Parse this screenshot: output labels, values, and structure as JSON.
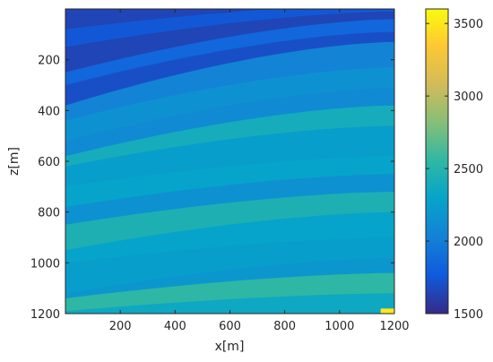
{
  "chart_data": {
    "type": "heatmap",
    "title": "",
    "xlabel": "x[m]",
    "ylabel": "z[m]",
    "xlim": [
      0,
      1200
    ],
    "ylim": [
      1200,
      0
    ],
    "x_ticks": [
      "200",
      "400",
      "600",
      "800",
      "1000",
      "1200"
    ],
    "y_ticks": [
      "200",
      "400",
      "600",
      "800",
      "1000",
      "1200"
    ],
    "colormap": "parula",
    "colorbar": {
      "range": [
        1500,
        3600
      ],
      "ticks": [
        "1500",
        "2000",
        "2500",
        "3000",
        "3500"
      ]
    },
    "layers": [
      {
        "z_left": 0,
        "z_right": 0,
        "value": 1650
      },
      {
        "z_left": 80,
        "z_right": -20,
        "value": 1750
      },
      {
        "z_left": 150,
        "z_right": 10,
        "value": 1650
      },
      {
        "z_left": 250,
        "z_right": 40,
        "value": 1850
      },
      {
        "z_left": 300,
        "z_right": 90,
        "value": 1700
      },
      {
        "z_left": 380,
        "z_right": 130,
        "value": 2050
      },
      {
        "z_left": 440,
        "z_right": 230,
        "value": 2150
      },
      {
        "z_left": 520,
        "z_right": 310,
        "value": 2100
      },
      {
        "z_left": 580,
        "z_right": 380,
        "value": 2400
      },
      {
        "z_left": 620,
        "z_right": 460,
        "value": 2250
      },
      {
        "z_left": 700,
        "z_right": 580,
        "value": 2300
      },
      {
        "z_left": 780,
        "z_right": 650,
        "value": 2150
      },
      {
        "z_left": 850,
        "z_right": 720,
        "value": 2450
      },
      {
        "z_left": 950,
        "z_right": 800,
        "value": 2300
      },
      {
        "z_left": 1000,
        "z_right": 900,
        "value": 2250
      },
      {
        "z_left": 1120,
        "z_right": 980,
        "value": 2200
      },
      {
        "z_left": 1140,
        "z_right": 1040,
        "value": 2550
      },
      {
        "z_left": 1190,
        "z_right": 1120,
        "value": 2350
      }
    ],
    "anomaly": {
      "x": [
        1150,
        1200
      ],
      "z": [
        1180,
        1200
      ],
      "value": 3500
    }
  }
}
